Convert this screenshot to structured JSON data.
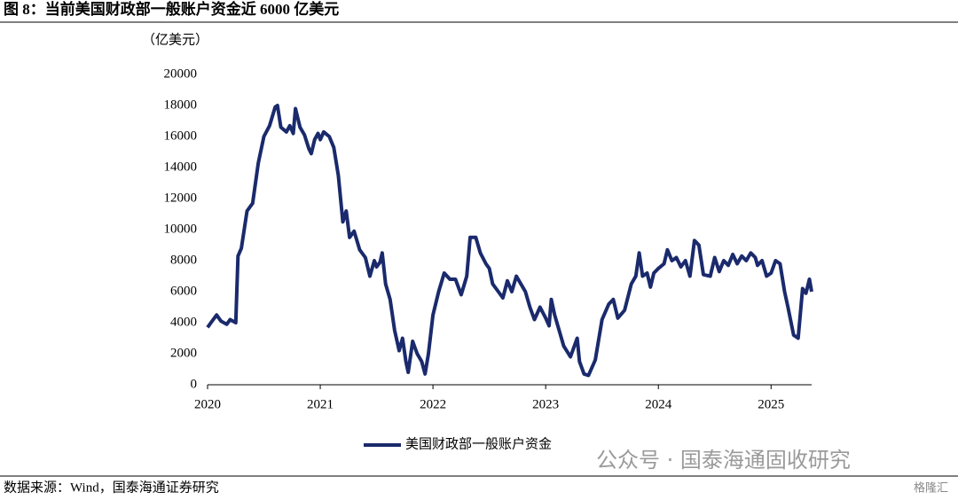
{
  "chart_data": {
    "type": "line",
    "title": "图 8：当前美国财政部一般账户资金近 6000 亿美元",
    "y_unit": "（亿美元）",
    "source": "数据来源：Wind，国泰海通证券研究",
    "watermark": "公众号 · 国泰海通固收研究",
    "logo": "格隆汇",
    "xlim": [
      2020,
      2025.36
    ],
    "xticks": [
      2020,
      2021,
      2022,
      2023,
      2024,
      2025
    ],
    "ylim": [
      0,
      20000
    ],
    "yticks": [
      0,
      2000,
      4000,
      6000,
      8000,
      10000,
      12000,
      14000,
      16000,
      18000,
      20000
    ],
    "legend": "bottom",
    "x": [
      2020.0,
      2020.03,
      2020.08,
      2020.12,
      2020.17,
      2020.2,
      2020.25,
      2020.27,
      2020.3,
      2020.35,
      2020.4,
      2020.45,
      2020.5,
      2020.55,
      2020.6,
      2020.62,
      2020.65,
      2020.7,
      2020.73,
      2020.76,
      2020.78,
      2020.82,
      2020.86,
      2020.9,
      2020.92,
      2020.95,
      2020.98,
      2021.0,
      2021.03,
      2021.08,
      2021.12,
      2021.16,
      2021.2,
      2021.23,
      2021.26,
      2021.3,
      2021.35,
      2021.4,
      2021.44,
      2021.48,
      2021.5,
      2021.53,
      2021.55,
      2021.58,
      2021.62,
      2021.66,
      2021.7,
      2021.73,
      2021.76,
      2021.78,
      2021.82,
      2021.86,
      2021.9,
      2021.93,
      2021.96,
      2022.0,
      2022.05,
      2022.1,
      2022.15,
      2022.2,
      2022.25,
      2022.3,
      2022.33,
      2022.38,
      2022.42,
      2022.47,
      2022.5,
      2022.53,
      2022.58,
      2022.62,
      2022.66,
      2022.7,
      2022.74,
      2022.78,
      2022.82,
      2022.86,
      2022.9,
      2022.95,
      2023.0,
      2023.03,
      2023.05,
      2023.08,
      2023.12,
      2023.16,
      2023.22,
      2023.28,
      2023.3,
      2023.34,
      2023.38,
      2023.44,
      2023.5,
      2023.56,
      2023.6,
      2023.64,
      2023.7,
      2023.76,
      2023.8,
      2023.83,
      2023.86,
      2023.9,
      2023.93,
      2023.96,
      2024.0,
      2024.05,
      2024.08,
      2024.12,
      2024.16,
      2024.2,
      2024.24,
      2024.28,
      2024.32,
      2024.36,
      2024.4,
      2024.46,
      2024.5,
      2024.54,
      2024.58,
      2024.62,
      2024.66,
      2024.7,
      2024.74,
      2024.78,
      2024.82,
      2024.86,
      2024.88,
      2024.92,
      2024.96,
      2025.0,
      2025.04,
      2025.08,
      2025.12,
      2025.15,
      2025.2,
      2025.24,
      2025.28,
      2025.31,
      2025.34,
      2025.36
    ],
    "series": [
      {
        "name": "美国财政部一般账户资金",
        "color": "#1a2a6c",
        "values": [
          3700,
          4000,
          4500,
          4100,
          3900,
          4200,
          4000,
          8300,
          8800,
          11200,
          11700,
          14300,
          16000,
          16700,
          17900,
          18000,
          16600,
          16300,
          16700,
          16200,
          17800,
          16600,
          16100,
          15200,
          14900,
          15800,
          16200,
          15800,
          16300,
          16000,
          15300,
          13500,
          10500,
          11200,
          9500,
          9900,
          8700,
          8200,
          7000,
          8000,
          7600,
          7900,
          8500,
          6500,
          5500,
          3500,
          2200,
          3000,
          1500,
          800,
          2800,
          2000,
          1500,
          700,
          2000,
          4500,
          6000,
          7200,
          6800,
          6800,
          5800,
          7000,
          9500,
          9500,
          8500,
          7800,
          7500,
          6500,
          6000,
          5600,
          6700,
          6000,
          7000,
          6500,
          6000,
          5000,
          4200,
          5000,
          4300,
          3800,
          5500,
          4500,
          3500,
          2500,
          1800,
          3000,
          1500,
          700,
          600,
          1600,
          4200,
          5200,
          5500,
          4300,
          4800,
          6500,
          7000,
          8500,
          7000,
          7200,
          6300,
          7200,
          7500,
          7800,
          8700,
          8000,
          8200,
          7600,
          8000,
          7000,
          9300,
          9000,
          7100,
          7000,
          8200,
          7300,
          8000,
          7700,
          8400,
          7800,
          8300,
          8000,
          8500,
          8200,
          7700,
          8000,
          7000,
          7200,
          8000,
          7800,
          6000,
          5000,
          3200,
          3000,
          6200,
          5900,
          6800,
          6000
        ]
      }
    ]
  }
}
